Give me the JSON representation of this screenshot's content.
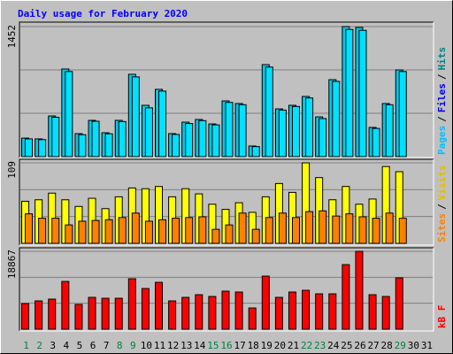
{
  "chart_data": [
    {
      "type": "bar",
      "title": "Daily usage for February 2020",
      "categories": [
        1,
        2,
        3,
        4,
        5,
        6,
        7,
        8,
        9,
        10,
        11,
        12,
        13,
        14,
        15,
        16,
        17,
        18,
        19,
        20,
        21,
        22,
        23,
        24,
        25,
        26,
        27,
        28,
        29,
        30,
        31
      ],
      "weekends": [
        1,
        2,
        8,
        9,
        15,
        16,
        22,
        23,
        29
      ],
      "weekend_color": "#008040",
      "ylim": [
        0,
        1452
      ],
      "yticks": [
        1452
      ],
      "separator": "/",
      "series": [
        {
          "name": "Hits",
          "color": "#00c8e8",
          "text_color": "#008080",
          "values": [
            207,
            198,
            454,
            978,
            257,
            405,
            267,
            405,
            919,
            573,
            751,
            257,
            385,
            415,
            365,
            622,
            593,
            119,
            1027,
            533,
            573,
            672,
            444,
            859,
            1452,
            1442,
            326,
            593,
            968,
            null,
            null
          ]
        },
        {
          "name": "Files",
          "color": "#00e0ff",
          "text_color": "#0000ff",
          "values": [
            198,
            190,
            440,
            950,
            245,
            395,
            255,
            392,
            890,
            545,
            732,
            248,
            370,
            402,
            355,
            605,
            580,
            112,
            1000,
            520,
            560,
            655,
            425,
            840,
            1420,
            1410,
            315,
            580,
            950,
            null,
            null
          ]
        },
        {
          "name": "Pages",
          "text_color": "#00c0ff"
        }
      ]
    },
    {
      "type": "bar",
      "ylim": [
        0,
        109
      ],
      "yticks": [
        109
      ],
      "separator": "/",
      "series": [
        {
          "name": "Visits",
          "color": "#ffff00",
          "text_color": "#e0c000",
          "values": [
            57,
            59,
            68,
            59,
            50,
            61,
            47,
            63,
            75,
            74,
            77,
            63,
            74,
            67,
            53,
            46,
            55,
            42,
            63,
            81,
            69,
            109,
            89,
            59,
            77,
            53,
            60,
            104,
            97,
            null,
            null
          ]
        },
        {
          "name": "Sites",
          "color": "#ff8000",
          "text_color": "#ff8000",
          "values": [
            40,
            34,
            34,
            25,
            30,
            31,
            32,
            35,
            41,
            30,
            32,
            34,
            35,
            36,
            19,
            25,
            41,
            19,
            35,
            41,
            35,
            43,
            44,
            37,
            40,
            36,
            34,
            41,
            34,
            null,
            null
          ]
        }
      ]
    },
    {
      "type": "bar",
      "ylim": [
        0,
        18867
      ],
      "yticks": [
        18867
      ],
      "series": [
        {
          "name": "kB F",
          "color": "#ff0000",
          "text_color": "#ff0000",
          "values": [
            6217,
            6861,
            7289,
            11578,
            6003,
            7718,
            7504,
            7504,
            12221,
            9862,
            11363,
            6861,
            7718,
            8361,
            7933,
            9219,
            9005,
            5146,
            12864,
            7718,
            9005,
            9434,
            8576,
            8576,
            15651,
            18867,
            8361,
            7933,
            12435,
            null,
            null
          ]
        }
      ]
    }
  ]
}
